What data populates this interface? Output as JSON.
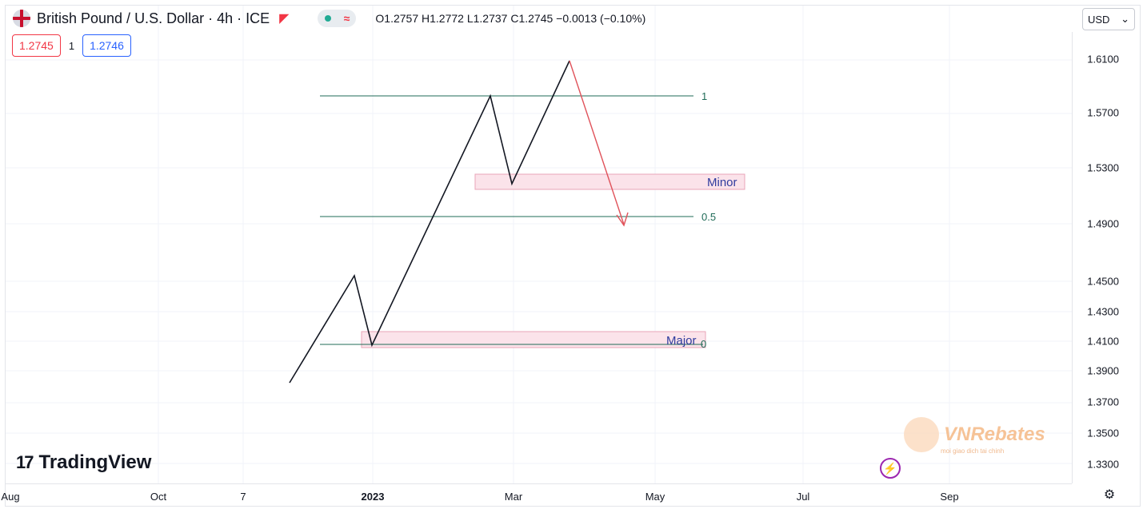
{
  "header": {
    "symbol_title": "British Pound / U.S. Dollar · 4h · ICE",
    "status_wave": "≈",
    "ohlc": "O1.2757  H1.2772  L1.2737  C1.2745  −0.0013 (−0.10%)"
  },
  "trade": {
    "sell_price": "1.2745",
    "quantity": "1",
    "buy_price": "1.2746"
  },
  "currency_selector": {
    "value": "USD",
    "chevron": "⌄"
  },
  "price_axis": {
    "ticks": [
      "1.6100",
      "1.5700",
      "1.5300",
      "1.4900",
      "1.4500",
      "1.4300",
      "1.4100",
      "1.3900",
      "1.3700",
      "1.3500",
      "1.3300"
    ]
  },
  "time_axis": {
    "ticks": [
      "Aug",
      "Oct",
      "7",
      "2023",
      "Mar",
      "May",
      "Jul",
      "Sep"
    ]
  },
  "drawings": {
    "fib_level_1": "1",
    "fib_level_05": "0.5",
    "fib_level_0": "0",
    "minor_zone_label": "Minor",
    "major_zone_label": "Major",
    "line_color": "#131722",
    "arrow_color": "#e0525a",
    "zone_fill": "#fbe3ea",
    "zone_border": "#e8a6b8",
    "fib_color": "#1f6b57"
  },
  "branding": {
    "logo_mark": "17",
    "logo_text": "TradingView",
    "watermark_text": "VNRebates",
    "watermark_tagline": "moi giao dich tai chinh"
  },
  "icons": {
    "bolt": "⚡",
    "settings": "⚙"
  }
}
